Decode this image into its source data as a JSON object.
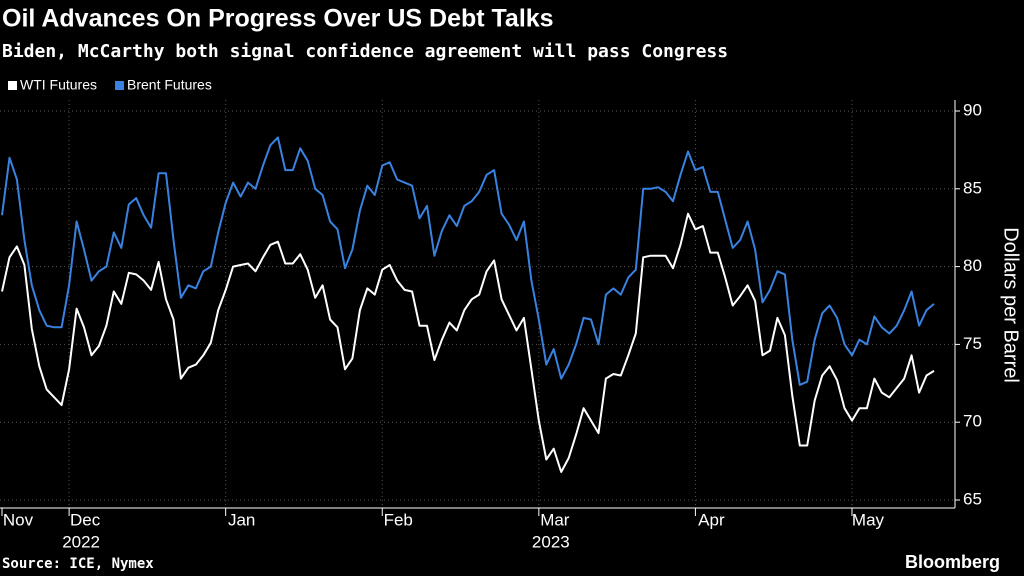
{
  "chart_data": {
    "type": "line",
    "title": "Oil Advances On Progress Over US Debt Talks",
    "subtitle": "Biden, McCarthy both signal confidence agreement will pass Congress",
    "y_label": "Dollars per Barrel",
    "source": "Source: ICE, Nymex",
    "brand": "Bloomberg",
    "ylim": [
      65,
      90
    ],
    "yticks": [
      65,
      70,
      75,
      80,
      85,
      90
    ],
    "xlim": [
      0,
      125
    ],
    "xticks": [
      {
        "value": 0,
        "label": "Nov"
      },
      {
        "value": 9,
        "label": "Dec"
      },
      {
        "value": 30,
        "label": "Jan"
      },
      {
        "value": 51,
        "label": "Feb"
      },
      {
        "value": 72,
        "label": "Mar"
      },
      {
        "value": 93,
        "label": "Apr"
      },
      {
        "value": 114,
        "label": "May"
      }
    ],
    "year_labels": [
      {
        "value": 9,
        "label": "2022"
      },
      {
        "value": 72,
        "label": "2023"
      }
    ],
    "grid": true,
    "series": [
      {
        "name": "WTI Futures",
        "color": "#ffffff",
        "values": [
          78.4,
          80.6,
          81.3,
          80.1,
          76.0,
          73.6,
          72.1,
          71.6,
          71.1,
          73.4,
          77.3,
          76.1,
          74.3,
          74.9,
          76.2,
          78.4,
          77.6,
          79.6,
          79.5,
          79.1,
          78.5,
          80.3,
          77.9,
          76.6,
          72.8,
          73.5,
          73.7,
          74.3,
          75.1,
          77.2,
          78.5,
          80.0,
          80.1,
          80.2,
          79.7,
          80.6,
          81.4,
          81.6,
          80.2,
          80.2,
          80.8,
          79.8,
          78.0,
          78.8,
          76.6,
          76.1,
          73.4,
          74.1,
          77.2,
          78.6,
          78.2,
          79.8,
          80.1,
          79.1,
          78.5,
          78.4,
          76.2,
          76.2,
          74.0,
          75.3,
          76.4,
          75.9,
          77.2,
          77.9,
          78.2,
          79.7,
          80.4,
          77.9,
          76.9,
          75.9,
          76.7,
          73.4,
          70.1,
          67.6,
          68.3,
          66.8,
          67.7,
          69.2,
          70.9,
          70.1,
          69.3,
          72.8,
          73.1,
          73.0,
          74.3,
          75.7,
          80.6,
          80.7,
          80.7,
          80.7,
          79.9,
          81.4,
          83.4,
          82.4,
          82.6,
          80.9,
          80.9,
          79.3,
          77.5,
          78.1,
          78.8,
          77.8,
          74.3,
          74.6,
          76.7,
          75.6,
          71.7,
          68.5,
          68.5,
          71.4,
          73.0,
          73.6,
          72.7,
          70.9,
          70.1,
          70.9,
          70.9,
          72.8,
          71.9,
          71.6,
          72.2,
          72.8,
          74.3,
          71.9,
          73.0,
          73.3
        ]
      },
      {
        "name": "Brent Futures",
        "color": "#3a82e0",
        "values": [
          83.3,
          87.0,
          85.6,
          81.7,
          78.8,
          77.2,
          76.2,
          76.1,
          76.1,
          78.8,
          82.9,
          81.1,
          79.1,
          79.7,
          80.0,
          82.2,
          81.2,
          84.0,
          84.4,
          83.3,
          82.5,
          86.0,
          86.0,
          81.7,
          78.0,
          78.8,
          78.6,
          79.7,
          80.0,
          82.2,
          84.1,
          85.4,
          84.5,
          85.4,
          85.0,
          86.5,
          87.8,
          88.3,
          86.2,
          86.2,
          87.6,
          86.8,
          85.0,
          84.6,
          82.9,
          82.4,
          79.9,
          81.1,
          83.6,
          85.2,
          84.6,
          86.5,
          86.7,
          85.6,
          85.4,
          85.2,
          83.1,
          83.9,
          80.7,
          82.3,
          83.3,
          82.6,
          83.9,
          84.2,
          84.8,
          85.9,
          86.2,
          83.4,
          82.7,
          81.7,
          82.9,
          79.1,
          76.6,
          73.7,
          74.7,
          72.8,
          73.7,
          75.0,
          76.7,
          76.6,
          75.0,
          78.2,
          78.6,
          78.2,
          79.3,
          79.8,
          85.0,
          85.0,
          85.1,
          84.8,
          84.2,
          85.9,
          87.4,
          86.2,
          86.4,
          84.8,
          84.8,
          83.0,
          81.2,
          81.7,
          82.9,
          81.1,
          77.7,
          78.5,
          79.7,
          79.5,
          75.3,
          72.4,
          72.6,
          75.3,
          77.0,
          77.5,
          76.7,
          75.0,
          74.3,
          75.3,
          75.0,
          76.8,
          76.1,
          75.7,
          76.2,
          77.2,
          78.4,
          76.2,
          77.2,
          77.6
        ]
      }
    ]
  }
}
